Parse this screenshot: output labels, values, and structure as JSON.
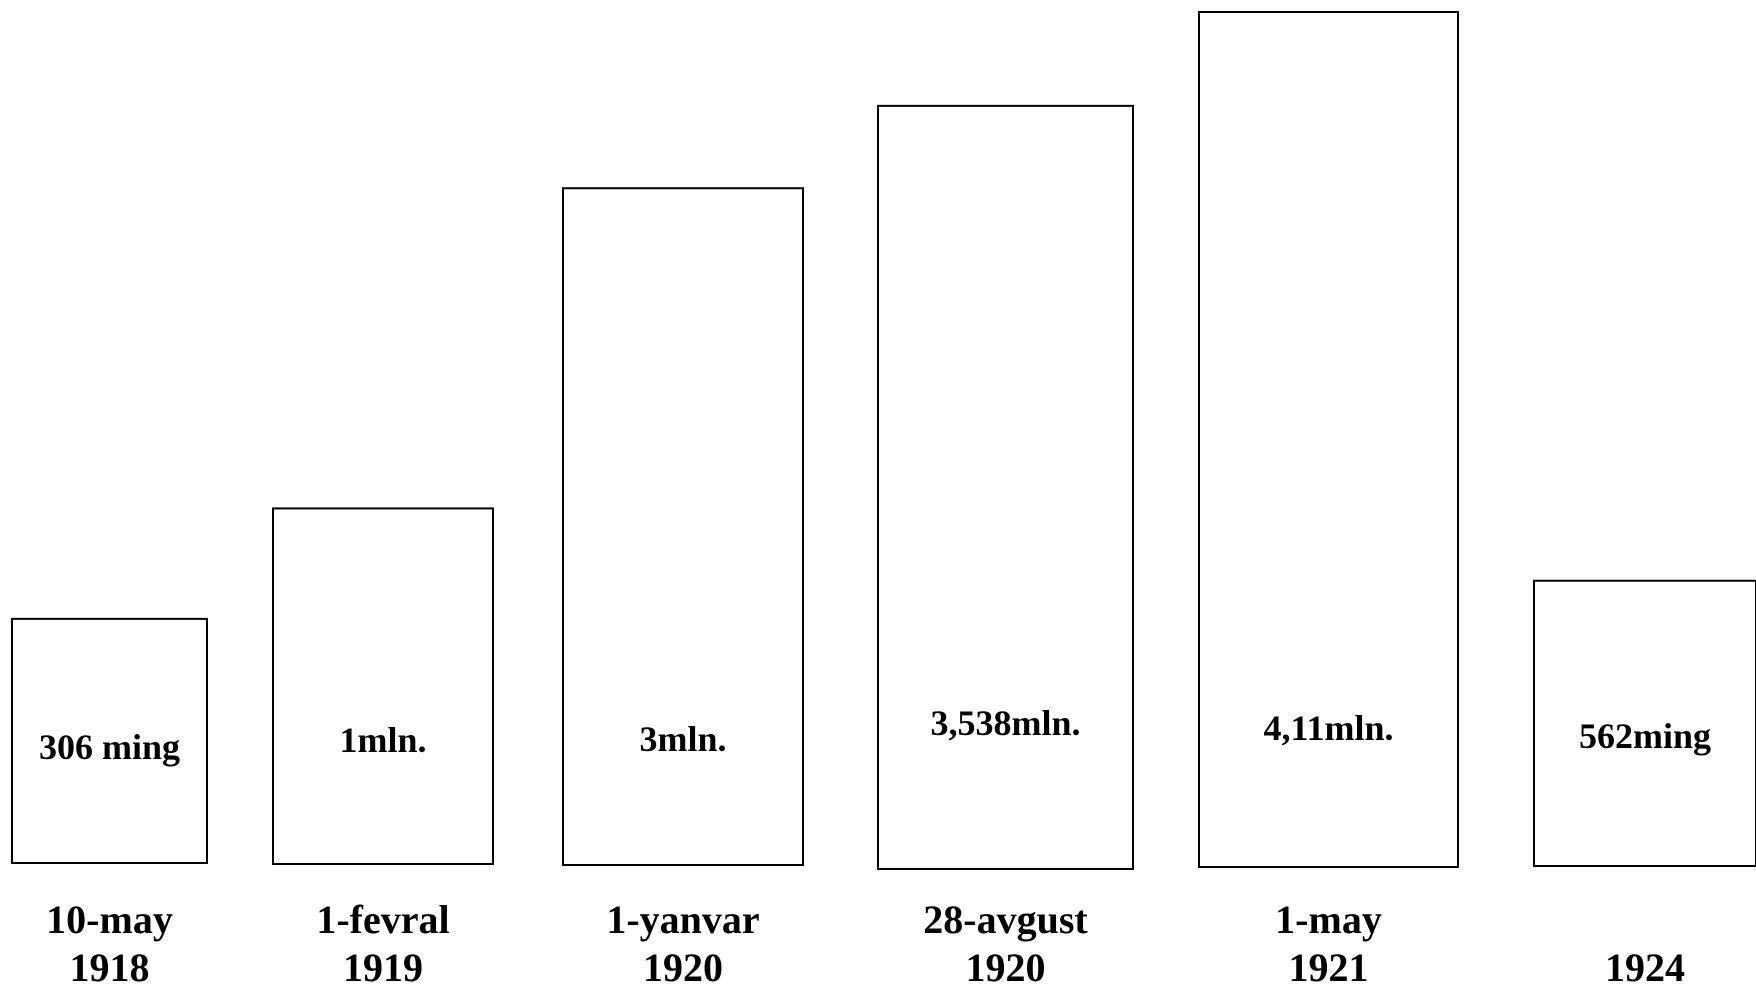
{
  "chart_data": {
    "type": "bar",
    "title": "",
    "xlabel": "",
    "ylabel": "",
    "categories": [
      [
        "10-may",
        "1918"
      ],
      [
        "1-fevral",
        "1919"
      ],
      [
        "1-yanvar",
        "1920"
      ],
      [
        "28-avgust",
        "1920"
      ],
      [
        "1-may",
        "1921"
      ],
      [
        "",
        "1924"
      ]
    ],
    "values": [
      306000,
      1000000,
      3000000,
      3538000,
      4110000,
      562000
    ],
    "value_labels": [
      "306 ming",
      "1mln.",
      "3mln.",
      "3,538mln.",
      "4,11mln.",
      "562ming"
    ],
    "grid": false,
    "legend": "none"
  }
}
